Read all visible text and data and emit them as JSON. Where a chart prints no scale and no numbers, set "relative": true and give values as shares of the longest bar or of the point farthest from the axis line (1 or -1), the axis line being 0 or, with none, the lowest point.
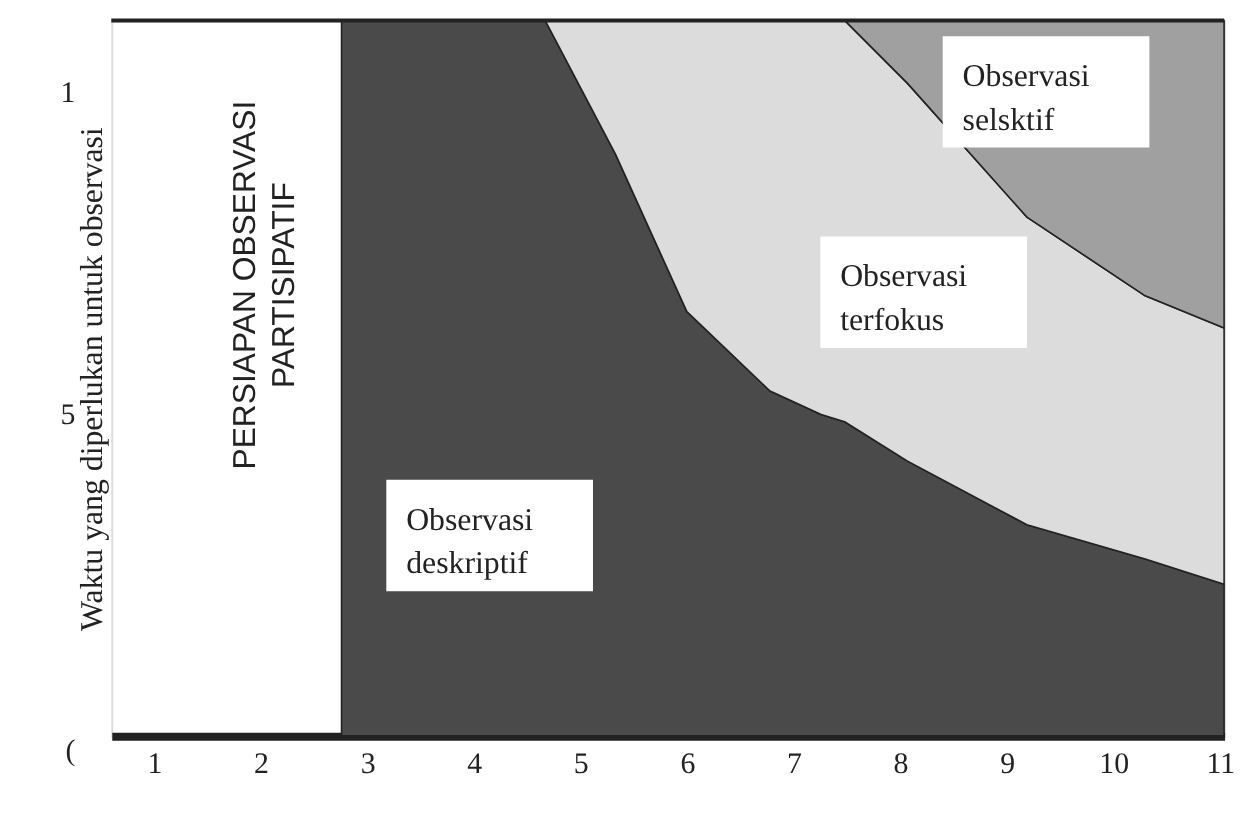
{
  "chart_data": {
    "type": "area",
    "stacked": true,
    "relative": true,
    "legend": false,
    "grid": false,
    "ylabel": "Waktu yang diperlukan untuk observasi",
    "x": [
      2.76,
      4.67,
      5.33,
      6.0,
      6.78,
      7.26,
      7.48,
      8.07,
      9.19,
      10.3,
      11.04
    ],
    "xlim": [
      0.6,
      11.04
    ],
    "xticks": [
      1,
      2,
      3,
      4,
      5,
      6,
      7,
      8,
      9,
      10,
      11
    ],
    "series": [
      {
        "name": "Observasi deskriptif",
        "color": "#4a4a4a",
        "values": [
          1,
          1,
          0.813,
          0.593,
          0.482,
          0.449,
          0.439,
          0.384,
          0.295,
          0.247,
          0.212
        ]
      },
      {
        "name": "Observasi terfokus",
        "color": "#dcdcdc",
        "values": [
          0,
          0,
          0.187,
          0.407,
          0.518,
          0.551,
          0.561,
          0.528,
          0.43,
          0.368,
          0.358
        ]
      },
      {
        "name": "Observasi selsktif",
        "color": "#a0a0a0",
        "values": [
          0,
          0,
          0,
          0,
          0,
          0,
          0,
          0.088,
          0.275,
          0.385,
          0.43
        ]
      }
    ],
    "annotations": [
      "PERSIAPAN OBSERVASI PARTISIPATIF",
      "1",
      "5",
      "("
    ]
  }
}
